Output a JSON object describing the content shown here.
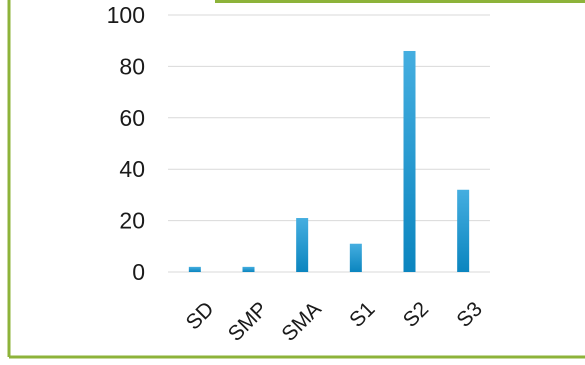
{
  "chart_data": {
    "type": "bar",
    "title": "",
    "xlabel": "",
    "ylabel": "",
    "categories": [
      "SD",
      "SMP",
      "SMA",
      "S1",
      "S2",
      "S3"
    ],
    "values": [
      2,
      2,
      21,
      11,
      86,
      32
    ],
    "ylim": [
      0,
      100
    ],
    "yticks": [
      "0",
      "20",
      "40",
      "60",
      "80",
      "100"
    ],
    "grid": true,
    "legend": "none",
    "colors": {
      "bar_top": "#45aee0",
      "bar_bottom": "#0b85bf",
      "frame": "#8db33a",
      "grid": "#d9d9d9",
      "text": "#1a1a1a"
    }
  }
}
